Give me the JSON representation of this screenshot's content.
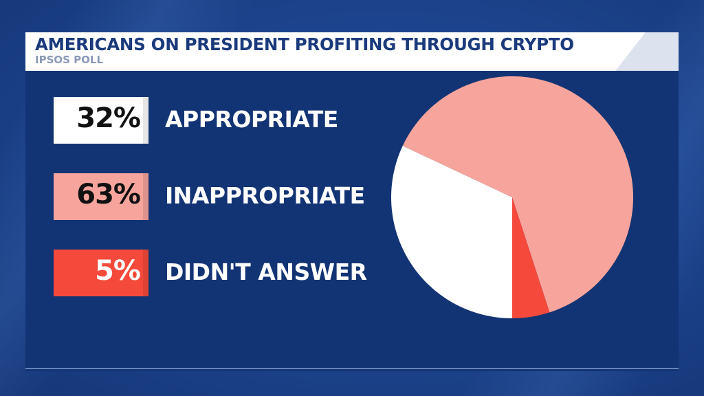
{
  "header": {
    "title": "AMERICANS ON PRESIDENT PROFITING THROUGH CRYPTO",
    "subtitle": "IPSOS POLL"
  },
  "legend": [
    {
      "value_label": "32%",
      "label": "APPROPRIATE",
      "color": "#ffffff",
      "text_color": "#111111"
    },
    {
      "value_label": "63%",
      "label": "INAPPROPRIATE",
      "color": "#f7a59c",
      "text_color": "#111111"
    },
    {
      "value_label": "5%",
      "label": "DIDN'T ANSWER",
      "color": "#f5493b",
      "text_color": "#ffffff"
    }
  ],
  "colors": {
    "background": "#1b3f86",
    "panel": "#133474",
    "title_text": "#1b3a7d",
    "subtitle_text": "#8a9ab8"
  },
  "chart_data": {
    "type": "pie",
    "title": "AMERICANS ON PRESIDENT PROFITING THROUGH CRYPTO",
    "subtitle": "IPSOS POLL",
    "categories": [
      "APPROPRIATE",
      "INAPPROPRIATE",
      "DIDN'T ANSWER"
    ],
    "values": [
      32,
      63,
      5
    ],
    "colors": [
      "#ffffff",
      "#f7a59c",
      "#f5493b"
    ],
    "legend_position": "left"
  }
}
